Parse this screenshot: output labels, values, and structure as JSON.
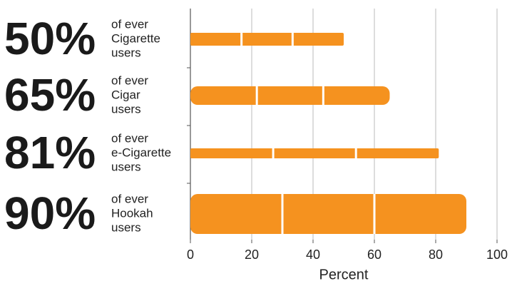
{
  "chart_data": {
    "type": "bar",
    "orientation": "horizontal",
    "categories": [
      "Cigarette",
      "Cigar",
      "e-Cigarette",
      "Hookah"
    ],
    "values": [
      50,
      65,
      81,
      90
    ],
    "value_labels": [
      "50%",
      "65%",
      "81%",
      "90%"
    ],
    "label_prefix": "of ever",
    "label_suffix": "users",
    "color": "#f5921f",
    "xlabel": "Percent",
    "xlim": [
      0,
      100
    ],
    "xticks": [
      0,
      20,
      40,
      60,
      80,
      100
    ],
    "grid": true
  }
}
